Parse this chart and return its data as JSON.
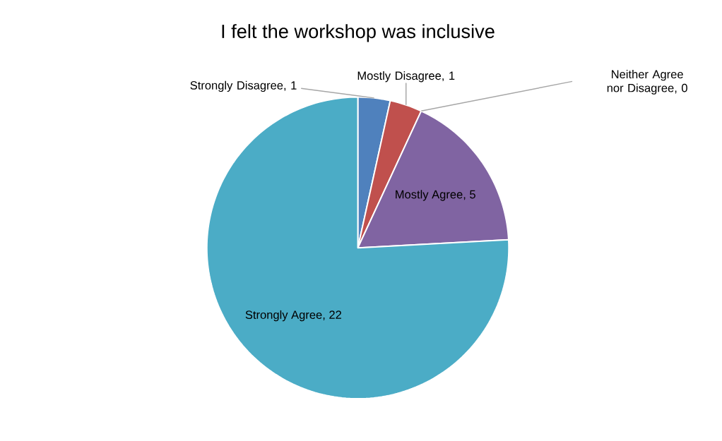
{
  "chart_data": {
    "type": "pie",
    "title": "I felt the workshop was inclusive",
    "categories": [
      "Strongly Disagree",
      "Mostly Disagree",
      "Neither Agree nor Disagree",
      "Mostly Agree",
      "Strongly Agree"
    ],
    "values": [
      1,
      1,
      0,
      5,
      22
    ],
    "colors": [
      "#4f81bd",
      "#c0504d",
      "#9bbb59",
      "#8064a2",
      "#4bacc6"
    ],
    "value_labels": [
      ", 1",
      ", 1",
      ", 0",
      ", 5",
      ", 22"
    ]
  }
}
